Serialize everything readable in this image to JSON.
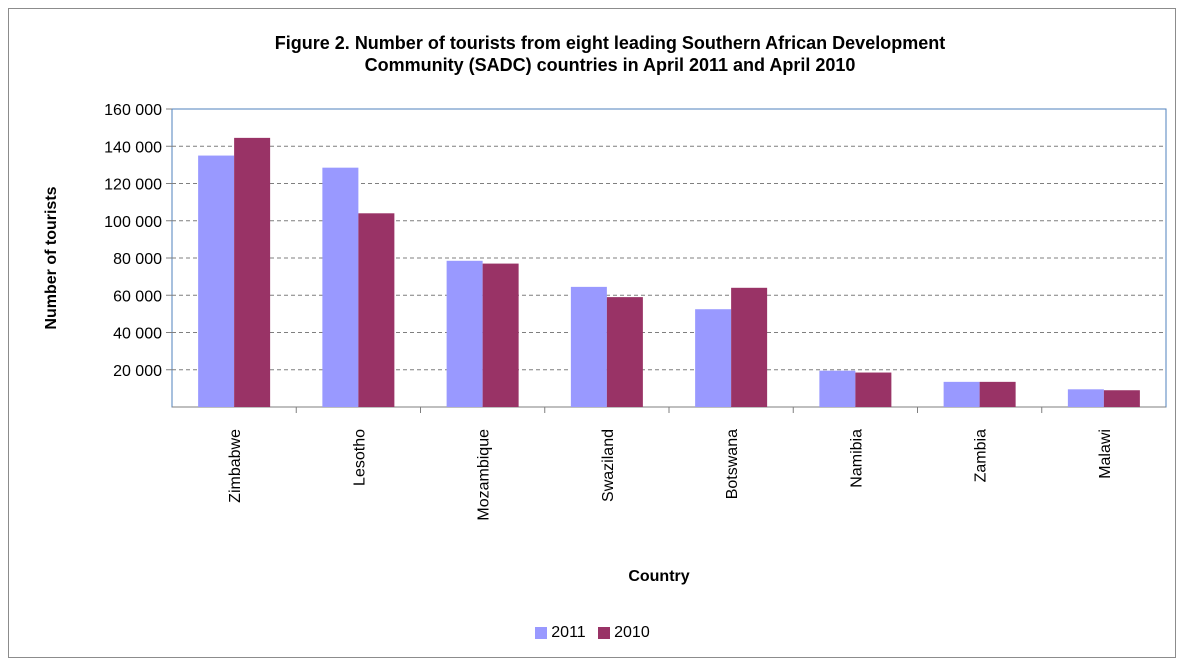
{
  "chart_data": {
    "type": "bar",
    "title_lines": [
      "Figure 2. Number of tourists from eight leading Southern African Development",
      "Community (SADC) countries in April 2011 and April 2010"
    ],
    "xlabel": "Country",
    "ylabel": "Number of tourists",
    "categories": [
      "Zimbabwe",
      "Lesotho",
      "Mozambique",
      "Swaziland",
      "Botswana",
      "Namibia",
      "Zambia",
      "Malawi"
    ],
    "series": [
      {
        "name": "2011",
        "color": "#9999ff",
        "values": [
          135000,
          128500,
          78500,
          64500,
          52500,
          19500,
          13500,
          9500
        ]
      },
      {
        "name": "2010",
        "color": "#993366",
        "values": [
          144500,
          104000,
          77000,
          59000,
          64000,
          18500,
          13500,
          9000
        ]
      }
    ],
    "ylim": [
      0,
      160000
    ],
    "yticks": [
      20000,
      40000,
      60000,
      80000,
      100000,
      120000,
      140000,
      160000
    ],
    "ytick_labels": [
      "20 000",
      "40 000",
      "60 000",
      "80 000",
      "100 000",
      "120 000",
      "140 000",
      "160 000"
    ],
    "grid": "horizontal dashed",
    "legend_position": "bottom"
  }
}
